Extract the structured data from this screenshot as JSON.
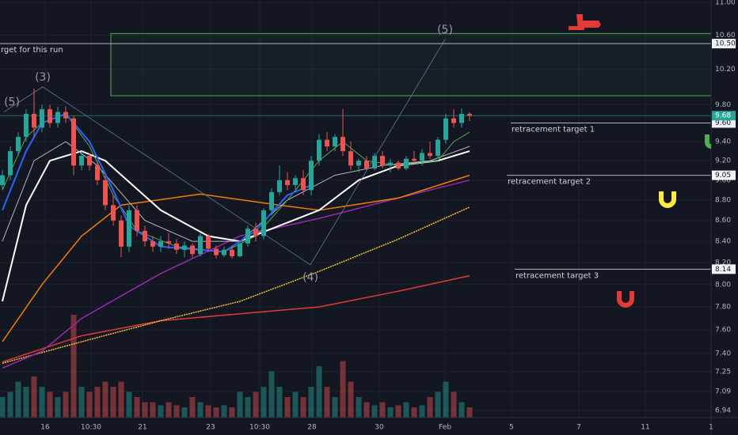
{
  "chart_data": {
    "type": "candlestick",
    "log_scale": true,
    "grid": true,
    "up_color": "#26a69a",
    "down_color": "#ef5350",
    "ylim": [
      6.94,
      11.0
    ],
    "yticks": [
      {
        "value": 11.0,
        "label": "11.00"
      },
      {
        "value": 10.6,
        "label": "10.60"
      },
      {
        "value": 10.2,
        "label": "10.20"
      },
      {
        "value": 9.8,
        "label": "9.80"
      },
      {
        "value": 9.4,
        "label": "9.40"
      },
      {
        "value": 9.2,
        "label": "9.20"
      },
      {
        "value": 9.0,
        "label": "9.00"
      },
      {
        "value": 8.8,
        "label": "8.80"
      },
      {
        "value": 8.6,
        "label": "8.60"
      },
      {
        "value": 8.4,
        "label": "8.40"
      },
      {
        "value": 8.2,
        "label": "8.20"
      },
      {
        "value": 8.0,
        "label": "8.00"
      },
      {
        "value": 7.8,
        "label": "7.80"
      },
      {
        "value": 7.6,
        "label": "7.60"
      },
      {
        "value": 7.4,
        "label": "7.40"
      },
      7.25,
      7.09,
      6.94
    ],
    "xticks": [
      {
        "value": 5.4,
        "label": "16"
      },
      {
        "value": 11.2,
        "label": "10:30"
      },
      {
        "value": 17.7,
        "label": "21"
      },
      {
        "value": 26.3,
        "label": "23"
      },
      {
        "value": 32.5,
        "label": "10:30"
      },
      {
        "value": 39.1,
        "label": "28"
      },
      {
        "value": 47.6,
        "label": "30"
      },
      {
        "value": 55.9,
        "label": "Feb"
      },
      {
        "value": 64.3,
        "label": "5"
      },
      {
        "value": 72.8,
        "label": "7"
      },
      {
        "value": 81.2,
        "label": "11"
      },
      {
        "value": 89.5,
        "label": "1"
      }
    ],
    "open": [
      8.95,
      9.05,
      9.3,
      9.45,
      9.7,
      9.55,
      9.75,
      9.6,
      9.72,
      9.65,
      9.15,
      9.25,
      9.15,
      9.0,
      8.75,
      8.6,
      8.35,
      8.7,
      8.5,
      8.4,
      8.35,
      8.4,
      8.38,
      8.32,
      8.36,
      8.28,
      8.45,
      8.33,
      8.27,
      8.32,
      8.26,
      8.38,
      8.52,
      8.45,
      8.7,
      8.88,
      9.0,
      8.95,
      9.02,
      8.9,
      9.2,
      9.42,
      9.35,
      9.45,
      9.3,
      9.15,
      9.2,
      9.12,
      9.25,
      9.15,
      9.18,
      9.12,
      9.22,
      9.2,
      9.28,
      9.25,
      9.42,
      9.65,
      9.6,
      9.7
    ],
    "high": [
      9.1,
      9.35,
      9.5,
      9.75,
      9.98,
      9.8,
      9.8,
      9.78,
      9.78,
      9.68,
      9.3,
      9.28,
      9.2,
      9.05,
      8.85,
      8.65,
      8.75,
      8.75,
      8.55,
      8.45,
      8.45,
      8.48,
      8.42,
      8.4,
      8.38,
      8.48,
      8.47,
      8.36,
      8.35,
      8.36,
      8.4,
      8.55,
      8.58,
      8.72,
      8.92,
      9.15,
      9.08,
      9.05,
      9.1,
      9.25,
      9.48,
      9.5,
      9.48,
      9.75,
      9.4,
      9.22,
      9.25,
      9.28,
      9.3,
      9.22,
      9.2,
      9.25,
      9.3,
      9.32,
      9.4,
      9.45,
      9.7,
      9.75,
      9.76,
      9.72
    ],
    "low": [
      8.9,
      9.0,
      9.25,
      9.4,
      9.45,
      9.5,
      9.55,
      9.55,
      9.6,
      9.05,
      9.1,
      9.1,
      8.95,
      8.7,
      8.55,
      8.25,
      8.3,
      8.45,
      8.35,
      8.3,
      8.3,
      8.33,
      8.28,
      8.25,
      8.25,
      8.26,
      8.3,
      8.24,
      8.25,
      8.24,
      8.25,
      8.35,
      8.4,
      8.42,
      8.65,
      8.85,
      8.9,
      8.88,
      8.85,
      8.85,
      9.15,
      9.3,
      9.3,
      9.25,
      9.1,
      9.08,
      9.1,
      9.1,
      9.12,
      9.08,
      9.1,
      9.1,
      9.18,
      9.15,
      9.22,
      9.22,
      9.38,
      9.55,
      9.55,
      9.62
    ],
    "close": [
      9.05,
      9.3,
      9.45,
      9.7,
      9.55,
      9.75,
      9.6,
      9.72,
      9.65,
      9.15,
      9.25,
      9.15,
      9.0,
      8.75,
      8.6,
      8.35,
      8.7,
      8.5,
      8.4,
      8.35,
      8.4,
      8.38,
      8.32,
      8.36,
      8.28,
      8.45,
      8.33,
      8.27,
      8.32,
      8.26,
      8.38,
      8.52,
      8.45,
      8.7,
      8.88,
      9.0,
      8.95,
      9.02,
      8.9,
      9.2,
      9.42,
      9.35,
      9.45,
      9.3,
      9.15,
      9.2,
      9.12,
      9.25,
      9.15,
      9.18,
      9.12,
      9.22,
      9.2,
      9.28,
      9.25,
      9.42,
      9.65,
      9.6,
      9.7,
      9.68
    ],
    "volume": [
      20,
      25,
      35,
      30,
      40,
      30,
      25,
      20,
      25,
      100,
      30,
      25,
      30,
      35,
      30,
      35,
      25,
      20,
      15,
      15,
      12,
      15,
      12,
      10,
      20,
      15,
      12,
      10,
      12,
      10,
      25,
      20,
      25,
      30,
      45,
      30,
      20,
      25,
      20,
      30,
      50,
      30,
      20,
      55,
      35,
      20,
      15,
      12,
      15,
      10,
      12,
      15,
      10,
      12,
      20,
      25,
      35,
      25,
      15,
      10
    ],
    "vlim": [
      0,
      100
    ],
    "series": [
      {
        "color": "#e53935",
        "x": [
          0,
          10,
          20,
          30,
          40,
          50,
          59
        ],
        "values": [
          7.33,
          7.55,
          7.68,
          7.74,
          7.8,
          7.94,
          8.08
        ]
      },
      {
        "color": "#fbc02d",
        "x": [
          0,
          10,
          20,
          30,
          40,
          50,
          59
        ],
        "values": [
          7.32,
          7.5,
          7.68,
          7.85,
          8.12,
          8.42,
          8.73
        ]
      },
      {
        "color": "#9c27b0",
        "x": [
          0,
          5,
          10,
          20,
          30,
          40,
          50,
          59
        ],
        "values": [
          7.28,
          7.42,
          7.7,
          8.1,
          8.45,
          8.62,
          8.82,
          9.0
        ]
      },
      {
        "color": "#f57c00",
        "x": [
          0,
          5,
          10,
          15,
          25,
          35,
          40,
          50,
          59
        ],
        "values": [
          7.5,
          8.0,
          8.45,
          8.75,
          8.86,
          8.75,
          8.7,
          8.82,
          9.05
        ]
      },
      {
        "color": "#ffffff",
        "x": [
          0,
          3,
          6,
          10,
          13,
          20,
          26,
          30,
          35,
          40,
          45,
          50,
          55,
          59
        ],
        "values": [
          7.85,
          8.75,
          9.2,
          9.3,
          9.2,
          8.7,
          8.45,
          8.4,
          8.55,
          8.7,
          9.0,
          9.15,
          9.2,
          9.3
        ]
      },
      {
        "color": "#b2b5be",
        "x": [
          0,
          4,
          8,
          12,
          18,
          24,
          30,
          36,
          42,
          48,
          54,
          59
        ],
        "values": [
          8.4,
          9.2,
          9.4,
          9.15,
          8.6,
          8.4,
          8.4,
          8.8,
          9.05,
          9.15,
          9.2,
          9.35
        ]
      },
      {
        "color": "#4caf50",
        "x": [
          0,
          3,
          5,
          8,
          11,
          14,
          17,
          22,
          28,
          32,
          36,
          40,
          43,
          46,
          50,
          55,
          57,
          59
        ],
        "values": [
          8.9,
          9.45,
          9.6,
          9.7,
          9.35,
          8.85,
          8.5,
          8.35,
          8.3,
          8.45,
          8.8,
          9.2,
          9.4,
          9.2,
          9.15,
          9.2,
          9.4,
          9.5
        ]
      },
      {
        "color": "#2962ff",
        "x": [
          0,
          3,
          5,
          8,
          11,
          14,
          16,
          20,
          28,
          32,
          36,
          39
        ],
        "values": [
          8.7,
          9.3,
          9.6,
          9.7,
          9.4,
          8.9,
          8.55,
          8.35,
          8.3,
          8.5,
          8.85,
          8.95
        ]
      }
    ],
    "zone": {
      "start": 13.7,
      "top": 10.62,
      "bottom": 9.9,
      "color": "#4caf50"
    },
    "last_price_color": "#26a69a",
    "levels": [
      {
        "value": 10.5,
        "label": "10.50",
        "text": "rget for this run"
      },
      {
        "value": 9.6,
        "label": "9.60",
        "text": "retracement target 1"
      },
      {
        "value": 9.05,
        "text": "retracement target 2"
      },
      {
        "value": 8.14,
        "text": "retracement target 3"
      }
    ],
    "waves": [
      {
        "label": "(5)",
        "x": 0.2,
        "y": 9.72
      },
      {
        "label": "(3)",
        "x": 5.1,
        "y": 10.0
      },
      {
        "label": "(4)",
        "x": 38.9,
        "y": 8.18
      },
      {
        "label": "(5)",
        "x": 55.9,
        "y": 10.55
      }
    ]
  }
}
